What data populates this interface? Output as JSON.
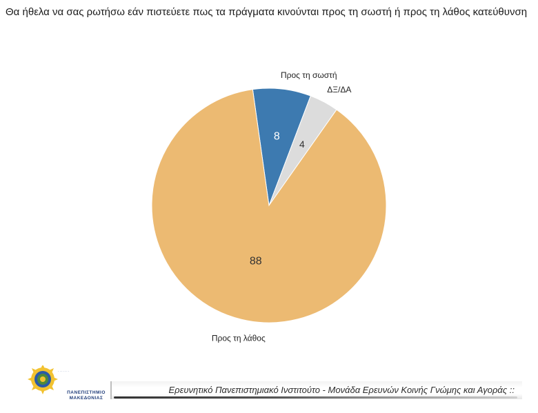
{
  "page": {
    "title": "Θα ήθελα να σας ρωτήσω εάν πιστεύετε πως τα πράγματα κινούνται προς τη σωστή ή προς τη λάθος κατεύθυνση"
  },
  "chart_data": {
    "type": "pie",
    "slices": [
      {
        "category": "Προς τη σωστή",
        "value": 8,
        "color": "#3d7ab0",
        "value_color": "#ffffff"
      },
      {
        "category": "ΔΞ/ΔΑ",
        "value": 4,
        "color": "#dcdcdc",
        "value_color": "#333333"
      },
      {
        "category": "Προς τη λάθος",
        "value": 88,
        "color": "#ecba72",
        "value_color": "#333333"
      }
    ],
    "start_angle_deg": -8,
    "direction": "clockwise",
    "legend": "none"
  },
  "footer": {
    "text": "Ερευνητικό Πανεπιστημιακό Ινστιτούτο - Μονάδα Ερευνών Κοινής Γνώμης και Αγοράς ::",
    "logo_line1": "ΠΑΝΕΠΙΣΤΗΜΙΟ",
    "logo_line2": "ΜΑΚΕΔΟΝΙΑΣ",
    "logo_icon": "university-seal-icon"
  }
}
